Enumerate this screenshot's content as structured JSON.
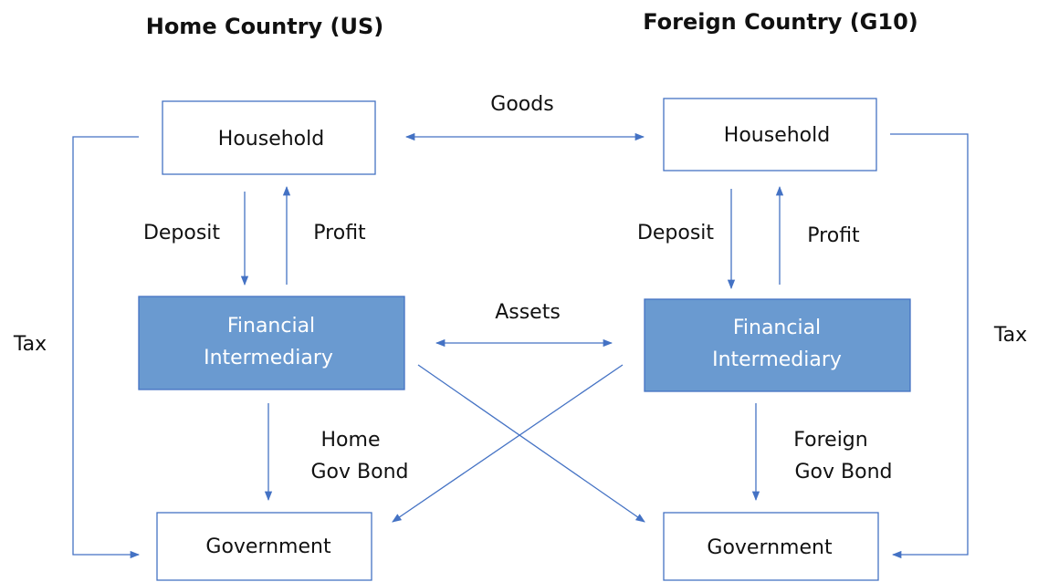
{
  "titles": {
    "home": "Home Country (US)",
    "foreign": "Foreign Country (G10)"
  },
  "nodes": {
    "home_household": "Household",
    "foreign_household": "Household",
    "home_intermediary": [
      "Financial",
      "Intermediary"
    ],
    "foreign_intermediary": [
      "Financial",
      "Intermediary"
    ],
    "home_government": "Government",
    "foreign_government": "Government"
  },
  "edges": {
    "goods": "Goods",
    "assets": "Assets",
    "home_deposit": "Deposit",
    "home_profit": "Profit",
    "foreign_deposit": "Deposit",
    "foreign_profit": "Profit",
    "home_bond": [
      "Home",
      "Gov Bond"
    ],
    "foreign_bond": [
      "Foreign",
      "Gov Bond"
    ],
    "home_tax": "Tax",
    "foreign_tax": "Tax"
  }
}
